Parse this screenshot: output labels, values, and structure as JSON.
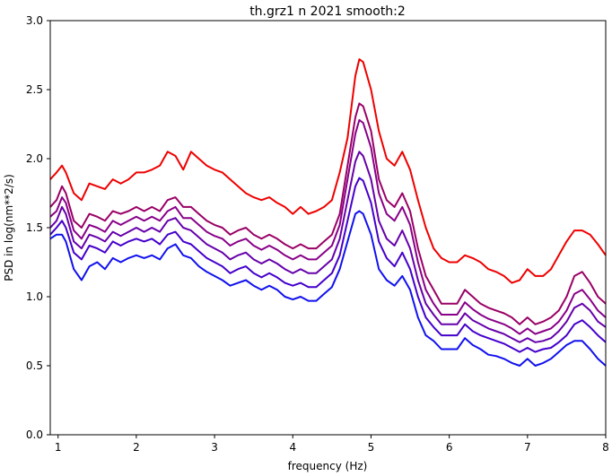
{
  "chart_data": {
    "type": "line",
    "title": "th.grz1 n 2021 smooth:2",
    "xlabel": "frequency (Hz)",
    "ylabel": "PSD in log(nm**2/s)",
    "xlim": [
      0.9,
      8.0
    ],
    "ylim": [
      0.0,
      3.0
    ],
    "xticks": [
      "1",
      "2",
      "3",
      "4",
      "5",
      "6",
      "7",
      "8"
    ],
    "yticks": [
      "0.0",
      "0.5",
      "1.0",
      "1.5",
      "2.0",
      "2.5",
      "3.0"
    ],
    "grid": false,
    "legend": "none",
    "series": [
      {
        "color": "#ee0000",
        "x": [
          0.9,
          0.98,
          1.05,
          1.1,
          1.2,
          1.3,
          1.4,
          1.5,
          1.6,
          1.7,
          1.8,
          1.9,
          2.0,
          2.1,
          2.2,
          2.3,
          2.4,
          2.5,
          2.6,
          2.7,
          2.8,
          2.9,
          3.0,
          3.1,
          3.2,
          3.3,
          3.4,
          3.5,
          3.6,
          3.7,
          3.8,
          3.9,
          4.0,
          4.1,
          4.2,
          4.3,
          4.4,
          4.5,
          4.6,
          4.7,
          4.8,
          4.85,
          4.9,
          5.0,
          5.1,
          5.2,
          5.3,
          5.4,
          5.5,
          5.6,
          5.7,
          5.8,
          5.9,
          6.0,
          6.1,
          6.2,
          6.3,
          6.4,
          6.5,
          6.6,
          6.7,
          6.8,
          6.9,
          7.0,
          7.1,
          7.2,
          7.3,
          7.4,
          7.5,
          7.6,
          7.7,
          7.8,
          7.9,
          8.0
        ],
        "y": [
          1.85,
          1.9,
          1.95,
          1.9,
          1.75,
          1.7,
          1.82,
          1.8,
          1.78,
          1.85,
          1.82,
          1.85,
          1.9,
          1.9,
          1.92,
          1.95,
          2.05,
          2.02,
          1.92,
          2.05,
          2.0,
          1.95,
          1.92,
          1.9,
          1.85,
          1.8,
          1.75,
          1.72,
          1.7,
          1.72,
          1.68,
          1.65,
          1.6,
          1.65,
          1.6,
          1.62,
          1.65,
          1.7,
          1.9,
          2.15,
          2.6,
          2.72,
          2.7,
          2.5,
          2.2,
          2.0,
          1.95,
          2.05,
          1.92,
          1.7,
          1.5,
          1.35,
          1.28,
          1.25,
          1.25,
          1.3,
          1.28,
          1.25,
          1.2,
          1.18,
          1.15,
          1.1,
          1.12,
          1.2,
          1.15,
          1.15,
          1.2,
          1.3,
          1.4,
          1.48,
          1.48,
          1.45,
          1.38,
          1.3
        ]
      },
      {
        "color": "#990066",
        "x": [
          0.9,
          0.98,
          1.05,
          1.1,
          1.2,
          1.3,
          1.4,
          1.5,
          1.6,
          1.7,
          1.8,
          1.9,
          2.0,
          2.1,
          2.2,
          2.3,
          2.4,
          2.5,
          2.6,
          2.7,
          2.8,
          2.9,
          3.0,
          3.1,
          3.2,
          3.3,
          3.4,
          3.5,
          3.6,
          3.7,
          3.8,
          3.9,
          4.0,
          4.1,
          4.2,
          4.3,
          4.4,
          4.5,
          4.6,
          4.7,
          4.8,
          4.85,
          4.9,
          5.0,
          5.1,
          5.2,
          5.3,
          5.4,
          5.5,
          5.6,
          5.7,
          5.8,
          5.9,
          6.0,
          6.1,
          6.2,
          6.3,
          6.4,
          6.5,
          6.6,
          6.7,
          6.8,
          6.9,
          7.0,
          7.1,
          7.2,
          7.3,
          7.4,
          7.5,
          7.6,
          7.7,
          7.8,
          7.9,
          8.0
        ],
        "y": [
          1.65,
          1.7,
          1.8,
          1.75,
          1.55,
          1.5,
          1.6,
          1.58,
          1.55,
          1.62,
          1.6,
          1.62,
          1.65,
          1.62,
          1.65,
          1.62,
          1.7,
          1.72,
          1.65,
          1.65,
          1.6,
          1.55,
          1.52,
          1.5,
          1.45,
          1.48,
          1.5,
          1.45,
          1.42,
          1.45,
          1.42,
          1.38,
          1.35,
          1.38,
          1.35,
          1.35,
          1.4,
          1.45,
          1.6,
          1.95,
          2.3,
          2.4,
          2.38,
          2.2,
          1.85,
          1.7,
          1.65,
          1.75,
          1.62,
          1.35,
          1.15,
          1.05,
          0.95,
          0.95,
          0.95,
          1.05,
          1.0,
          0.95,
          0.92,
          0.9,
          0.88,
          0.85,
          0.8,
          0.85,
          0.8,
          0.82,
          0.85,
          0.9,
          1.0,
          1.15,
          1.18,
          1.1,
          1.0,
          0.95
        ]
      },
      {
        "color": "#880088",
        "x": [
          0.9,
          0.98,
          1.05,
          1.1,
          1.2,
          1.3,
          1.4,
          1.5,
          1.6,
          1.7,
          1.8,
          1.9,
          2.0,
          2.1,
          2.2,
          2.3,
          2.4,
          2.5,
          2.6,
          2.7,
          2.8,
          2.9,
          3.0,
          3.1,
          3.2,
          3.3,
          3.4,
          3.5,
          3.6,
          3.7,
          3.8,
          3.9,
          4.0,
          4.1,
          4.2,
          4.3,
          4.4,
          4.5,
          4.6,
          4.7,
          4.8,
          4.85,
          4.9,
          5.0,
          5.1,
          5.2,
          5.3,
          5.4,
          5.5,
          5.6,
          5.7,
          5.8,
          5.9,
          6.0,
          6.1,
          6.2,
          6.3,
          6.4,
          6.5,
          6.6,
          6.7,
          6.8,
          6.9,
          7.0,
          7.1,
          7.2,
          7.3,
          7.4,
          7.5,
          7.6,
          7.7,
          7.8,
          7.9,
          8.0
        ],
        "y": [
          1.58,
          1.62,
          1.72,
          1.68,
          1.48,
          1.42,
          1.52,
          1.5,
          1.47,
          1.55,
          1.52,
          1.55,
          1.58,
          1.55,
          1.58,
          1.55,
          1.62,
          1.65,
          1.57,
          1.57,
          1.52,
          1.47,
          1.44,
          1.42,
          1.37,
          1.4,
          1.42,
          1.37,
          1.34,
          1.37,
          1.34,
          1.3,
          1.27,
          1.3,
          1.27,
          1.27,
          1.32,
          1.37,
          1.52,
          1.85,
          2.18,
          2.28,
          2.26,
          2.08,
          1.75,
          1.6,
          1.55,
          1.65,
          1.52,
          1.25,
          1.05,
          0.95,
          0.87,
          0.87,
          0.87,
          0.96,
          0.91,
          0.87,
          0.84,
          0.82,
          0.8,
          0.77,
          0.73,
          0.77,
          0.73,
          0.75,
          0.77,
          0.82,
          0.9,
          1.02,
          1.05,
          0.98,
          0.9,
          0.85
        ]
      },
      {
        "color": "#6600aa",
        "x": [
          0.9,
          0.98,
          1.05,
          1.1,
          1.2,
          1.3,
          1.4,
          1.5,
          1.6,
          1.7,
          1.8,
          1.9,
          2.0,
          2.1,
          2.2,
          2.3,
          2.4,
          2.5,
          2.6,
          2.7,
          2.8,
          2.9,
          3.0,
          3.1,
          3.2,
          3.3,
          3.4,
          3.5,
          3.6,
          3.7,
          3.8,
          3.9,
          4.0,
          4.1,
          4.2,
          4.3,
          4.4,
          4.5,
          4.6,
          4.7,
          4.8,
          4.85,
          4.9,
          5.0,
          5.1,
          5.2,
          5.3,
          5.4,
          5.5,
          5.6,
          5.7,
          5.8,
          5.9,
          6.0,
          6.1,
          6.2,
          6.3,
          6.4,
          6.5,
          6.6,
          6.7,
          6.8,
          6.9,
          7.0,
          7.1,
          7.2,
          7.3,
          7.4,
          7.5,
          7.6,
          7.7,
          7.8,
          7.9,
          8.0
        ],
        "y": [
          1.5,
          1.55,
          1.65,
          1.6,
          1.4,
          1.35,
          1.45,
          1.43,
          1.4,
          1.47,
          1.44,
          1.47,
          1.5,
          1.47,
          1.5,
          1.47,
          1.55,
          1.57,
          1.5,
          1.48,
          1.43,
          1.38,
          1.35,
          1.32,
          1.27,
          1.3,
          1.32,
          1.27,
          1.24,
          1.27,
          1.24,
          1.2,
          1.17,
          1.2,
          1.17,
          1.17,
          1.22,
          1.27,
          1.42,
          1.7,
          1.98,
          2.05,
          2.02,
          1.85,
          1.55,
          1.42,
          1.37,
          1.48,
          1.35,
          1.12,
          0.95,
          0.87,
          0.8,
          0.8,
          0.8,
          0.88,
          0.83,
          0.8,
          0.77,
          0.75,
          0.73,
          0.7,
          0.67,
          0.7,
          0.67,
          0.68,
          0.7,
          0.75,
          0.82,
          0.92,
          0.95,
          0.9,
          0.82,
          0.78
        ]
      },
      {
        "color": "#4400cc",
        "x": [
          0.9,
          0.98,
          1.05,
          1.1,
          1.2,
          1.3,
          1.4,
          1.5,
          1.6,
          1.7,
          1.8,
          1.9,
          2.0,
          2.1,
          2.2,
          2.3,
          2.4,
          2.5,
          2.6,
          2.7,
          2.8,
          2.9,
          3.0,
          3.1,
          3.2,
          3.3,
          3.4,
          3.5,
          3.6,
          3.7,
          3.8,
          3.9,
          4.0,
          4.1,
          4.2,
          4.3,
          4.4,
          4.5,
          4.6,
          4.7,
          4.8,
          4.85,
          4.9,
          5.0,
          5.1,
          5.2,
          5.3,
          5.4,
          5.5,
          5.6,
          5.7,
          5.8,
          5.9,
          6.0,
          6.1,
          6.2,
          6.3,
          6.4,
          6.5,
          6.6,
          6.7,
          6.8,
          6.9,
          7.0,
          7.1,
          7.2,
          7.3,
          7.4,
          7.5,
          7.6,
          7.7,
          7.8,
          7.9,
          8.0
        ],
        "y": [
          1.45,
          1.5,
          1.55,
          1.5,
          1.32,
          1.27,
          1.37,
          1.35,
          1.32,
          1.4,
          1.37,
          1.4,
          1.42,
          1.4,
          1.42,
          1.38,
          1.45,
          1.47,
          1.4,
          1.38,
          1.33,
          1.28,
          1.25,
          1.22,
          1.17,
          1.2,
          1.22,
          1.17,
          1.14,
          1.17,
          1.14,
          1.1,
          1.08,
          1.1,
          1.07,
          1.07,
          1.12,
          1.17,
          1.3,
          1.55,
          1.8,
          1.86,
          1.84,
          1.68,
          1.4,
          1.28,
          1.22,
          1.32,
          1.2,
          1.0,
          0.85,
          0.78,
          0.72,
          0.72,
          0.72,
          0.8,
          0.75,
          0.72,
          0.7,
          0.68,
          0.66,
          0.63,
          0.6,
          0.63,
          0.6,
          0.62,
          0.63,
          0.67,
          0.72,
          0.8,
          0.83,
          0.78,
          0.72,
          0.67
        ]
      },
      {
        "color": "#1111ee",
        "x": [
          0.9,
          0.98,
          1.05,
          1.1,
          1.2,
          1.3,
          1.4,
          1.5,
          1.6,
          1.7,
          1.8,
          1.9,
          2.0,
          2.1,
          2.2,
          2.3,
          2.4,
          2.5,
          2.6,
          2.7,
          2.8,
          2.9,
          3.0,
          3.1,
          3.2,
          3.3,
          3.4,
          3.5,
          3.6,
          3.7,
          3.8,
          3.9,
          4.0,
          4.1,
          4.2,
          4.3,
          4.4,
          4.5,
          4.6,
          4.7,
          4.8,
          4.85,
          4.9,
          5.0,
          5.1,
          5.2,
          5.3,
          5.4,
          5.5,
          5.6,
          5.7,
          5.8,
          5.9,
          6.0,
          6.1,
          6.2,
          6.3,
          6.4,
          6.5,
          6.6,
          6.7,
          6.8,
          6.9,
          7.0,
          7.1,
          7.2,
          7.3,
          7.4,
          7.5,
          7.6,
          7.7,
          7.8,
          7.9,
          8.0
        ],
        "y": [
          1.42,
          1.45,
          1.45,
          1.4,
          1.2,
          1.12,
          1.22,
          1.25,
          1.2,
          1.28,
          1.25,
          1.28,
          1.3,
          1.28,
          1.3,
          1.27,
          1.35,
          1.38,
          1.3,
          1.28,
          1.22,
          1.18,
          1.15,
          1.12,
          1.08,
          1.1,
          1.12,
          1.08,
          1.05,
          1.08,
          1.05,
          1.0,
          0.98,
          1.0,
          0.97,
          0.97,
          1.02,
          1.07,
          1.2,
          1.4,
          1.6,
          1.62,
          1.6,
          1.45,
          1.2,
          1.12,
          1.08,
          1.15,
          1.05,
          0.85,
          0.72,
          0.68,
          0.62,
          0.62,
          0.62,
          0.7,
          0.65,
          0.62,
          0.58,
          0.57,
          0.55,
          0.52,
          0.5,
          0.55,
          0.5,
          0.52,
          0.55,
          0.6,
          0.65,
          0.68,
          0.68,
          0.62,
          0.55,
          0.5
        ]
      }
    ]
  }
}
